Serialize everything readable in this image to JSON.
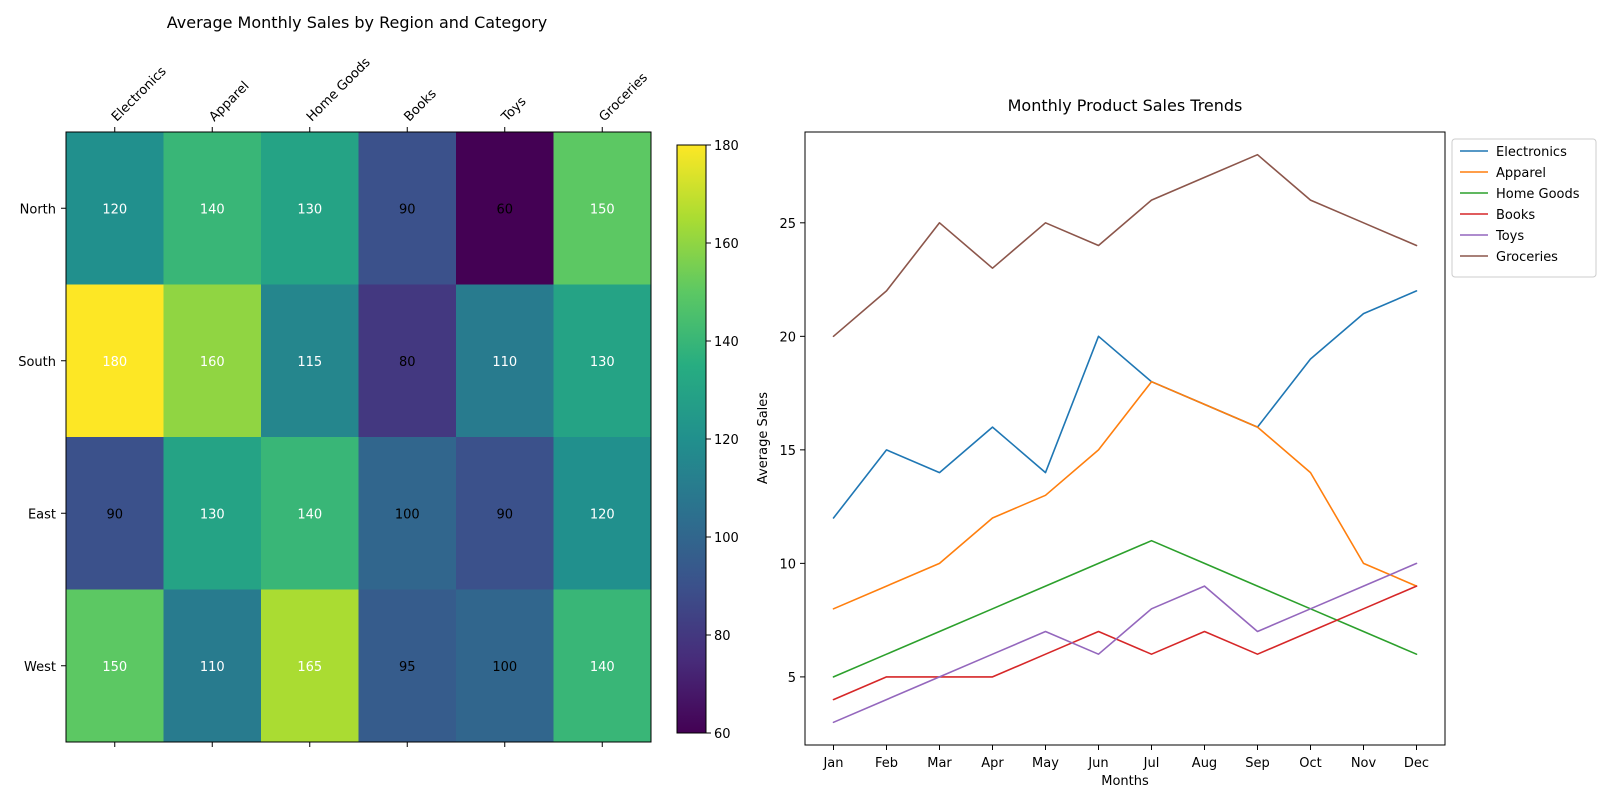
{
  "chart_data": [
    {
      "type": "heatmap",
      "title": "Average Monthly Sales by Region and Category",
      "columns": [
        "Electronics",
        "Apparel",
        "Home Goods",
        "Books",
        "Toys",
        "Groceries"
      ],
      "rows": [
        "North",
        "South",
        "East",
        "West"
      ],
      "values": [
        [
          120,
          140,
          130,
          90,
          60,
          150
        ],
        [
          180,
          160,
          115,
          80,
          110,
          130
        ],
        [
          90,
          130,
          140,
          100,
          90,
          120
        ],
        [
          150,
          110,
          165,
          95,
          100,
          140
        ]
      ],
      "colorbar": {
        "min": 60,
        "max": 180,
        "ticks": [
          60,
          80,
          100,
          120,
          140,
          160,
          180
        ],
        "colormap": "viridis"
      }
    },
    {
      "type": "line",
      "title": "Monthly Product Sales Trends",
      "xlabel": "Months",
      "ylabel": "Average Sales",
      "categories": [
        "Jan",
        "Feb",
        "Mar",
        "Apr",
        "May",
        "Jun",
        "Jul",
        "Aug",
        "Sep",
        "Oct",
        "Nov",
        "Dec"
      ],
      "ylim": [
        2,
        29
      ],
      "yticks": [
        5,
        10,
        15,
        20,
        25
      ],
      "legend_position": "upper-right-outside",
      "series": [
        {
          "name": "Electronics",
          "color": "#1f77b4",
          "values": [
            12,
            15,
            14,
            16,
            14,
            20,
            18,
            17,
            16,
            19,
            21,
            22
          ]
        },
        {
          "name": "Apparel",
          "color": "#ff7f0e",
          "values": [
            8,
            9,
            10,
            12,
            13,
            15,
            18,
            17,
            16,
            14,
            10,
            9
          ]
        },
        {
          "name": "Home Goods",
          "color": "#2ca02c",
          "values": [
            5,
            6,
            7,
            8,
            9,
            10,
            11,
            10,
            9,
            8,
            7,
            6
          ]
        },
        {
          "name": "Books",
          "color": "#d62728",
          "values": [
            4,
            5,
            5,
            5,
            6,
            7,
            6,
            7,
            6,
            7,
            8,
            9
          ]
        },
        {
          "name": "Toys",
          "color": "#9467bd",
          "values": [
            3,
            4,
            5,
            6,
            7,
            6,
            8,
            9,
            7,
            8,
            9,
            10
          ]
        },
        {
          "name": "Groceries",
          "color": "#8c564b",
          "values": [
            20,
            22,
            25,
            23,
            25,
            24,
            26,
            27,
            28,
            26,
            25,
            24
          ]
        }
      ]
    }
  ]
}
